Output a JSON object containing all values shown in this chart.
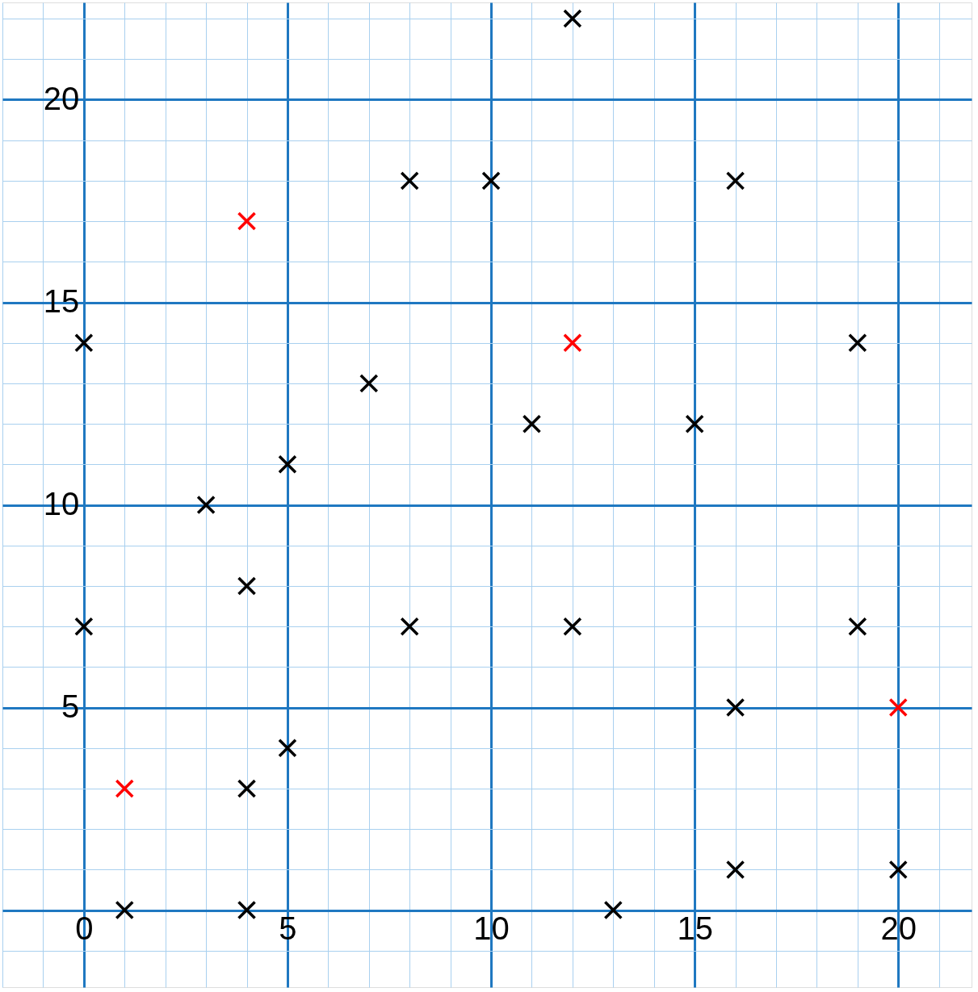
{
  "chart_data": {
    "type": "scatter",
    "series": [
      {
        "color": "#000000",
        "x": [
          0,
          0,
          1,
          3,
          4,
          4,
          4,
          5,
          5,
          7,
          8,
          8,
          10,
          11,
          12,
          12,
          13,
          15,
          16,
          16,
          16,
          19,
          19,
          20
        ],
        "values": [
          14,
          7,
          0,
          10,
          8,
          3,
          0,
          11,
          4,
          13,
          18,
          7,
          18,
          12,
          22,
          7,
          0,
          12,
          18,
          5,
          1,
          14,
          7,
          1
        ]
      },
      {
        "color": "#ff0000",
        "x": [
          1,
          4,
          12,
          20
        ],
        "values": [
          3,
          17,
          14,
          5
        ]
      }
    ],
    "marker": "cross",
    "grid": true,
    "xlim": [
      -2,
      21.8
    ],
    "ylim": [
      -1.9,
      22.4
    ],
    "xticks": [
      {
        "value": -2,
        "label": null
      },
      {
        "value": -1,
        "label": null
      },
      0,
      {
        "value": 1,
        "label": null
      },
      {
        "value": 2,
        "label": null
      },
      {
        "value": 3,
        "label": null
      },
      {
        "value": 4,
        "label": null
      },
      5,
      {
        "value": 6,
        "label": null
      },
      {
        "value": 7,
        "label": null
      },
      {
        "value": 8,
        "label": null
      },
      {
        "value": 9,
        "label": null
      },
      10,
      {
        "value": 11,
        "label": null
      },
      {
        "value": 12,
        "label": null
      },
      {
        "value": 13,
        "label": null
      },
      {
        "value": 14,
        "label": null
      },
      15,
      {
        "value": 16,
        "label": null
      },
      {
        "value": 17,
        "label": null
      },
      {
        "value": 18,
        "label": null
      },
      {
        "value": 19,
        "label": null
      },
      20,
      {
        "value": 21,
        "label": null
      }
    ],
    "yticks": [
      {
        "value": -1,
        "label": null
      },
      {
        "value": 0,
        "label": null
      },
      {
        "value": 1,
        "label": null
      },
      {
        "value": 2,
        "label": null
      },
      {
        "value": 3,
        "label": null
      },
      {
        "value": 4,
        "label": null
      },
      5,
      {
        "value": 6,
        "label": null
      },
      {
        "value": 7,
        "label": null
      },
      {
        "value": 8,
        "label": null
      },
      {
        "value": 9,
        "label": null
      },
      10,
      {
        "value": 11,
        "label": null
      },
      {
        "value": 12,
        "label": null
      },
      {
        "value": 13,
        "label": null
      },
      {
        "value": 14,
        "label": null
      },
      15,
      {
        "value": 16,
        "label": null
      },
      {
        "value": 17,
        "label": null
      },
      {
        "value": 18,
        "label": null
      },
      {
        "value": 19,
        "label": null
      },
      20,
      {
        "value": 21,
        "label": null
      },
      {
        "value": 22,
        "label": null
      }
    ]
  }
}
